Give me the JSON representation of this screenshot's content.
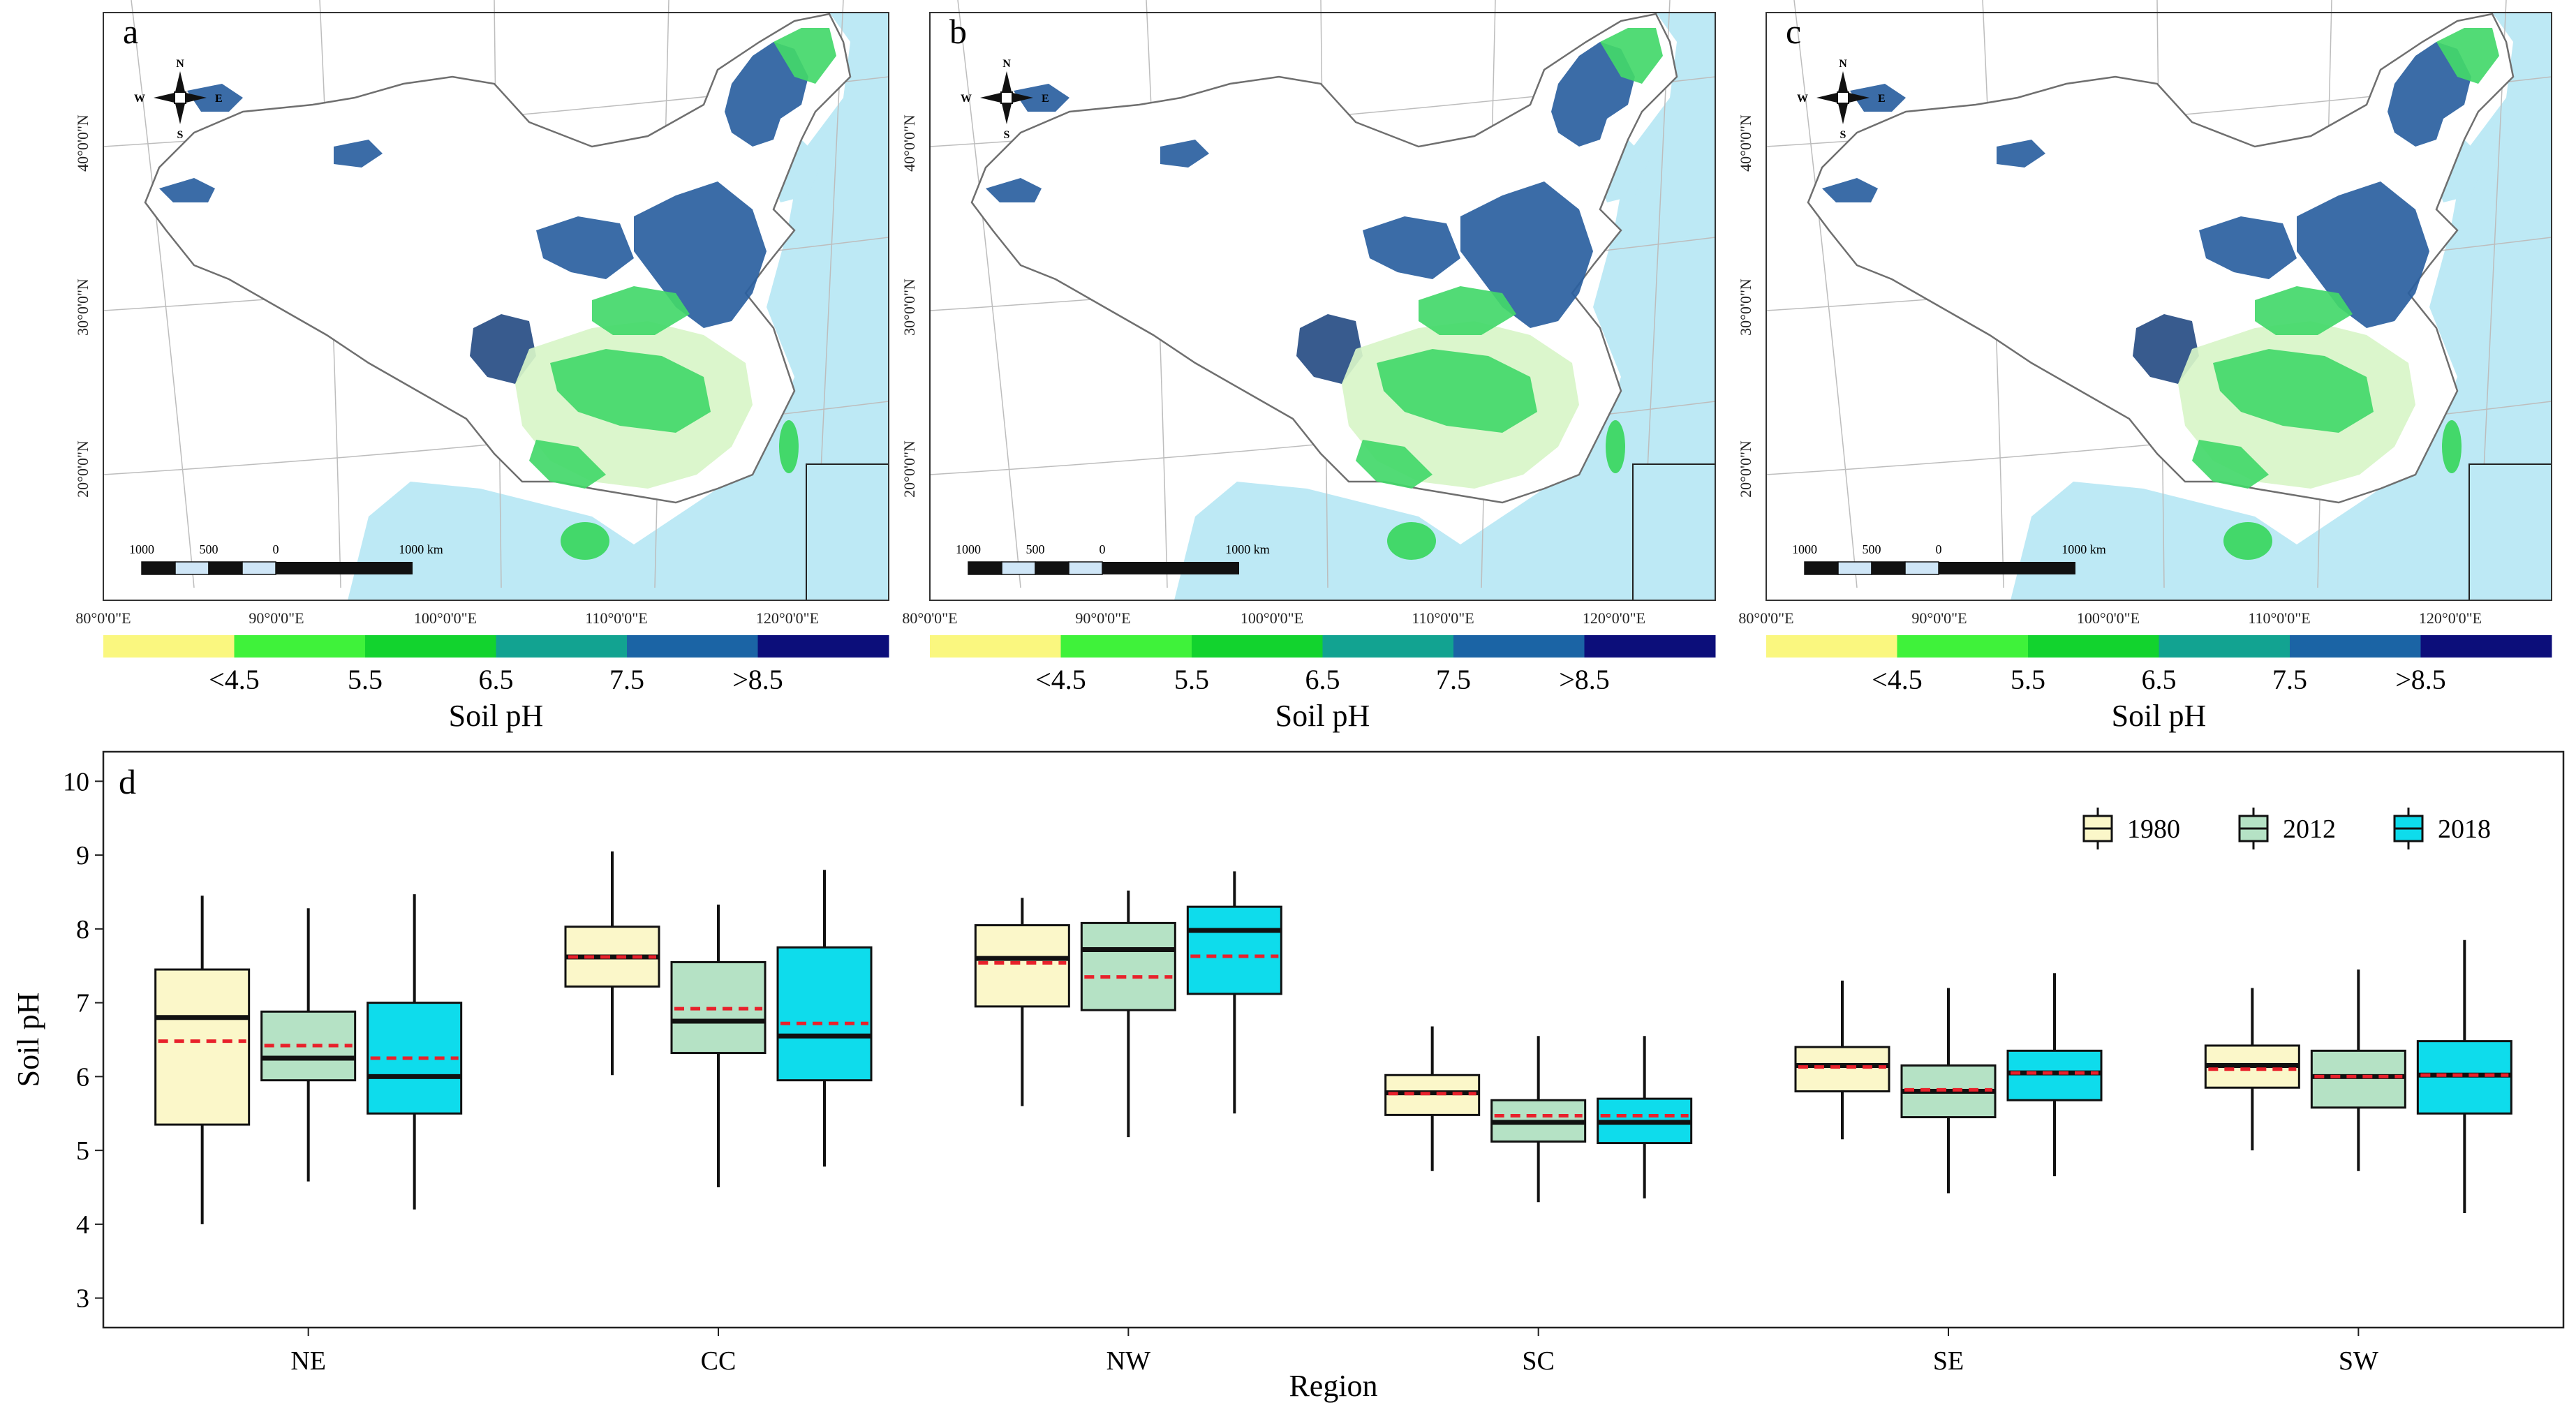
{
  "maps": [
    {
      "panel": "a"
    },
    {
      "panel": "b"
    },
    {
      "panel": "c"
    }
  ],
  "map_axes": {
    "lon_labels": [
      "80°0'0\"E",
      "90°0'0\"E",
      "100°0'0\"E",
      "110°0'0\"E",
      "120°0'0\"E"
    ],
    "lat_labels": [
      "40°0'0\"N",
      "30°0'0\"N",
      "20°0'0\"N"
    ]
  },
  "compass": {
    "n": "N",
    "s": "S",
    "e": "E",
    "w": "W"
  },
  "scalebar": {
    "labels": [
      "1000",
      "500",
      "0",
      "1000 km"
    ]
  },
  "ph_legend": {
    "title": "Soil pH",
    "ticks": [
      "<4.5",
      "5.5",
      "6.5",
      "7.5",
      ">8.5"
    ],
    "colors": [
      "#faf77f",
      "#3ff23a",
      "#12d32e",
      "#12a391",
      "#1b64a5",
      "#0c0e7a"
    ]
  },
  "map_colors": {
    "sea": "#bde9f5",
    "boundary": "#6f6f6f",
    "low": "#d8f5c8",
    "mid": "#43d86a",
    "high": "#2a5f9f",
    "vhigh": "#274d84"
  },
  "chart_data": {
    "type": "box",
    "panel": "d",
    "title": "",
    "xlabel": "Region",
    "ylabel": "Soil pH",
    "ylim": [
      2.6,
      10.4
    ],
    "yticks": [
      3,
      4,
      5,
      6,
      7,
      8,
      9,
      10
    ],
    "categories": [
      "NE",
      "CC",
      "NW",
      "SC",
      "SE",
      "SW"
    ],
    "legend_position": "top-right",
    "series": [
      {
        "name": "1980",
        "color": "#fbf7c9",
        "boxes": [
          {
            "min": 4.0,
            "q1": 5.35,
            "median": 6.8,
            "mean": 6.48,
            "q3": 7.45,
            "max": 8.45
          },
          {
            "min": 6.02,
            "q1": 7.22,
            "median": 7.62,
            "mean": 7.62,
            "q3": 8.03,
            "max": 9.05
          },
          {
            "min": 5.6,
            "q1": 6.95,
            "median": 7.6,
            "mean": 7.54,
            "q3": 8.05,
            "max": 8.42
          },
          {
            "min": 4.72,
            "q1": 5.48,
            "median": 5.78,
            "mean": 5.77,
            "q3": 6.02,
            "max": 6.68
          },
          {
            "min": 5.15,
            "q1": 5.8,
            "median": 6.15,
            "mean": 6.13,
            "q3": 6.4,
            "max": 7.3
          },
          {
            "min": 5.0,
            "q1": 5.85,
            "median": 6.15,
            "mean": 6.1,
            "q3": 6.42,
            "max": 7.2
          }
        ]
      },
      {
        "name": "2012",
        "color": "#b5e2c5",
        "boxes": [
          {
            "min": 4.58,
            "q1": 5.95,
            "median": 6.25,
            "mean": 6.42,
            "q3": 6.88,
            "max": 8.28
          },
          {
            "min": 4.5,
            "q1": 6.32,
            "median": 6.75,
            "mean": 6.92,
            "q3": 7.55,
            "max": 8.33
          },
          {
            "min": 5.18,
            "q1": 6.9,
            "median": 7.72,
            "mean": 7.35,
            "q3": 8.08,
            "max": 8.52
          },
          {
            "min": 4.3,
            "q1": 5.12,
            "median": 5.38,
            "mean": 5.47,
            "q3": 5.68,
            "max": 6.55
          },
          {
            "min": 4.42,
            "q1": 5.45,
            "median": 5.8,
            "mean": 5.82,
            "q3": 6.15,
            "max": 7.2
          },
          {
            "min": 4.72,
            "q1": 5.58,
            "median": 6.0,
            "mean": 6.0,
            "q3": 6.35,
            "max": 7.45
          }
        ]
      },
      {
        "name": "2018",
        "color": "#0edcec",
        "boxes": [
          {
            "min": 4.2,
            "q1": 5.5,
            "median": 6.0,
            "mean": 6.25,
            "q3": 7.0,
            "max": 8.47
          },
          {
            "min": 4.78,
            "q1": 5.95,
            "median": 6.55,
            "mean": 6.72,
            "q3": 7.75,
            "max": 8.8
          },
          {
            "min": 5.5,
            "q1": 7.12,
            "median": 7.98,
            "mean": 7.63,
            "q3": 8.3,
            "max": 8.78
          },
          {
            "min": 4.35,
            "q1": 5.1,
            "median": 5.38,
            "mean": 5.47,
            "q3": 5.7,
            "max": 6.55
          },
          {
            "min": 4.65,
            "q1": 5.68,
            "median": 6.05,
            "mean": 6.05,
            "q3": 6.35,
            "max": 7.4
          },
          {
            "min": 4.15,
            "q1": 5.5,
            "median": 6.02,
            "mean": 6.02,
            "q3": 6.48,
            "max": 7.85
          }
        ]
      }
    ],
    "median_style": "solid black line",
    "mean_style": "dashed red line",
    "mean_color": "#e8212b"
  }
}
